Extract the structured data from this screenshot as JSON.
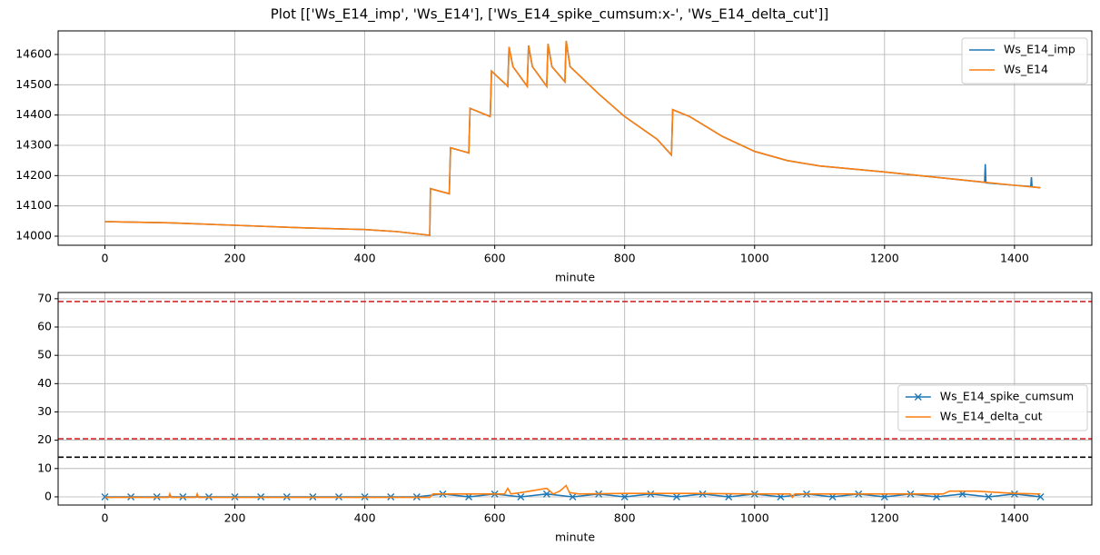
{
  "title": "Plot [['Ws_E14_imp', 'Ws_E14'], ['Ws_E14_spike_cumsum:x-', 'Ws_E14_delta_cut']]",
  "chart_data": [
    {
      "type": "line",
      "xlabel": "minute",
      "xlim": [
        -72,
        1519
      ],
      "ylim": [
        13970,
        14678
      ],
      "xticks": [
        0,
        200,
        400,
        600,
        800,
        1000,
        1200,
        1400
      ],
      "yticks": [
        14000,
        14100,
        14200,
        14300,
        14400,
        14500,
        14600
      ],
      "grid": true,
      "legend": "upper right",
      "series": [
        {
          "name": "Ws_E14_imp",
          "color": "#1f77b4",
          "x": [
            0,
            100,
            200,
            300,
            400,
            450,
            500,
            501,
            530,
            532,
            560,
            562,
            593,
            595,
            620,
            622,
            628,
            650,
            652,
            658,
            680,
            682,
            688,
            708,
            710,
            716,
            760,
            800,
            850,
            872,
            874,
            900,
            950,
            1000,
            1050,
            1100,
            1200,
            1300,
            1354,
            1355,
            1356,
            1400,
            1425,
            1426,
            1427,
            1440
          ],
          "values": [
            14048,
            14044,
            14036,
            14028,
            14022,
            14015,
            14003,
            14157,
            14140,
            14292,
            14275,
            14422,
            14395,
            14545,
            14495,
            14625,
            14560,
            14495,
            14630,
            14560,
            14495,
            14635,
            14560,
            14510,
            14645,
            14560,
            14470,
            14395,
            14320,
            14268,
            14418,
            14395,
            14330,
            14280,
            14250,
            14232,
            14212,
            14190,
            14178,
            14238,
            14176,
            14168,
            14164,
            14195,
            14163,
            14160
          ]
        },
        {
          "name": "Ws_E14",
          "color": "#ff7f0e",
          "x": [
            0,
            100,
            200,
            300,
            400,
            450,
            500,
            501,
            530,
            532,
            560,
            562,
            593,
            595,
            620,
            622,
            628,
            650,
            652,
            658,
            680,
            682,
            688,
            708,
            710,
            716,
            760,
            800,
            850,
            872,
            874,
            900,
            950,
            1000,
            1050,
            1100,
            1200,
            1300,
            1400,
            1440
          ],
          "values": [
            14048,
            14044,
            14036,
            14028,
            14022,
            14015,
            14003,
            14157,
            14140,
            14292,
            14275,
            14422,
            14395,
            14545,
            14495,
            14625,
            14560,
            14495,
            14630,
            14560,
            14495,
            14635,
            14560,
            14510,
            14645,
            14560,
            14470,
            14395,
            14320,
            14268,
            14418,
            14395,
            14330,
            14280,
            14250,
            14232,
            14212,
            14190,
            14168,
            14160
          ]
        }
      ]
    },
    {
      "type": "line",
      "xlabel": "minute",
      "xlim": [
        -72,
        1519
      ],
      "ylim": [
        -2.9,
        72.2
      ],
      "xticks": [
        0,
        200,
        400,
        600,
        800,
        1000,
        1200,
        1400
      ],
      "yticks": [
        0,
        10,
        20,
        30,
        40,
        50,
        60,
        70
      ],
      "grid": true,
      "legend": "center right",
      "hlines": [
        {
          "value": 69,
          "color": "#d62728"
        },
        {
          "value": 20.5,
          "color": "#d62728"
        },
        {
          "value": 14,
          "color": "#000000"
        }
      ],
      "series": [
        {
          "name": "Ws_E14_spike_cumsum",
          "color": "#1f77b4",
          "marker": "x",
          "x": [
            0,
            40,
            80,
            120,
            160,
            200,
            240,
            280,
            320,
            360,
            400,
            440,
            480,
            520,
            560,
            600,
            640,
            680,
            720,
            760,
            800,
            840,
            880,
            920,
            960,
            1000,
            1040,
            1080,
            1120,
            1160,
            1200,
            1240,
            1280,
            1320,
            1360,
            1400,
            1440
          ],
          "values": [
            0,
            0,
            0,
            0,
            0,
            0,
            0,
            0,
            0,
            0,
            0,
            0,
            0,
            1,
            0,
            1,
            0,
            1,
            0,
            1,
            0,
            1,
            0,
            1,
            0,
            1,
            0,
            1,
            0,
            1,
            0,
            1,
            0,
            1,
            0,
            1,
            0
          ]
        },
        {
          "name": "Ws_E14_delta_cut",
          "color": "#ff7f0e",
          "x": [
            0,
            98,
            100,
            102,
            140,
            142,
            144,
            500,
            505,
            600,
            615,
            620,
            625,
            640,
            680,
            690,
            700,
            710,
            715,
            730,
            800,
            900,
            1000,
            1055,
            1058,
            1062,
            1100,
            1200,
            1290,
            1300,
            1340,
            1400,
            1440
          ],
          "values": [
            -0.2,
            -0.2,
            1,
            -0.2,
            -0.2,
            1,
            -0.2,
            -0.2,
            1,
            1,
            1,
            3,
            1,
            1.5,
            3,
            1,
            2,
            4,
            1.5,
            1,
            1.2,
            1.2,
            1,
            1,
            -0.2,
            1,
            1,
            1,
            1,
            2,
            2,
            1.2,
            1
          ]
        }
      ]
    }
  ]
}
